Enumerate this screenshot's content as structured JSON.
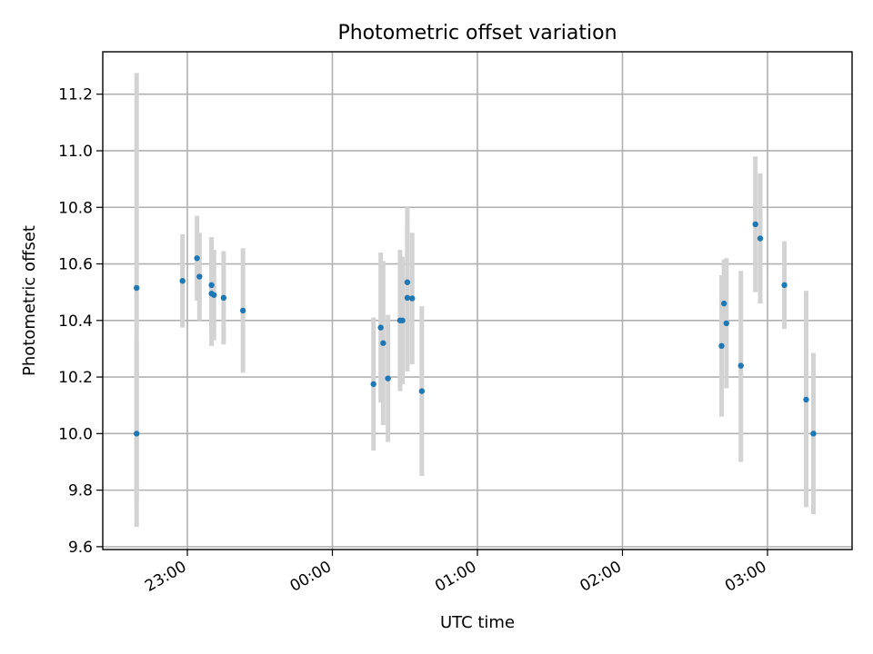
{
  "chart_data": {
    "type": "scatter",
    "title": "Photometric offset variation",
    "xlabel": "UTC time",
    "ylabel": "Photometric offset",
    "x_axis_type": "time",
    "xlim": [
      "22:25",
      "03:35"
    ],
    "ylim": [
      9.59,
      11.35
    ],
    "x_ticks": [
      "23:00",
      "00:00",
      "01:00",
      "02:00",
      "03:00"
    ],
    "y_ticks": [
      9.6,
      9.8,
      10.0,
      10.2,
      10.4,
      10.6,
      10.8,
      11.0,
      11.2
    ],
    "grid": true,
    "legend": "none",
    "marker_color": "#1f77b4",
    "errorbar_color": "#d3d3d3",
    "points": [
      {
        "x": "22:39",
        "y": 10.515,
        "ylo": 9.755,
        "yhi": 11.275
      },
      {
        "x": "22:39",
        "y": 10.0,
        "ylo": 9.67,
        "yhi": 10.33
      },
      {
        "x": "22:58",
        "y": 10.54,
        "ylo": 10.375,
        "yhi": 10.705
      },
      {
        "x": "23:04",
        "y": 10.62,
        "ylo": 10.47,
        "yhi": 10.77
      },
      {
        "x": "23:05",
        "y": 10.555,
        "ylo": 10.4,
        "yhi": 10.71
      },
      {
        "x": "23:10",
        "y": 10.525,
        "ylo": 10.355,
        "yhi": 10.695
      },
      {
        "x": "23:10",
        "y": 10.495,
        "ylo": 10.31,
        "yhi": 10.68
      },
      {
        "x": "23:11",
        "y": 10.49,
        "ylo": 10.33,
        "yhi": 10.65
      },
      {
        "x": "23:15",
        "y": 10.48,
        "ylo": 10.315,
        "yhi": 10.645
      },
      {
        "x": "23:23",
        "y": 10.435,
        "ylo": 10.215,
        "yhi": 10.655
      },
      {
        "x": "00:17",
        "y": 10.175,
        "ylo": 9.94,
        "yhi": 10.41
      },
      {
        "x": "00:20",
        "y": 10.375,
        "ylo": 10.11,
        "yhi": 10.64
      },
      {
        "x": "00:21",
        "y": 10.32,
        "ylo": 10.03,
        "yhi": 10.61
      },
      {
        "x": "00:23",
        "y": 10.195,
        "ylo": 9.97,
        "yhi": 10.42
      },
      {
        "x": "00:28",
        "y": 10.4,
        "ylo": 10.15,
        "yhi": 10.65
      },
      {
        "x": "00:29",
        "y": 10.4,
        "ylo": 10.175,
        "yhi": 10.625
      },
      {
        "x": "00:31",
        "y": 10.535,
        "ylo": 10.27,
        "yhi": 10.8
      },
      {
        "x": "00:31",
        "y": 10.48,
        "ylo": 10.22,
        "yhi": 10.74
      },
      {
        "x": "00:33",
        "y": 10.478,
        "ylo": 10.245,
        "yhi": 10.71
      },
      {
        "x": "00:37",
        "y": 10.15,
        "ylo": 9.85,
        "yhi": 10.45
      },
      {
        "x": "02:41",
        "y": 10.31,
        "ylo": 10.06,
        "yhi": 10.56
      },
      {
        "x": "02:42",
        "y": 10.46,
        "ylo": 10.305,
        "yhi": 10.615
      },
      {
        "x": "02:43",
        "y": 10.39,
        "ylo": 10.16,
        "yhi": 10.62
      },
      {
        "x": "02:49",
        "y": 10.24,
        "ylo": 9.9,
        "yhi": 10.575
      },
      {
        "x": "02:55",
        "y": 10.74,
        "ylo": 10.5,
        "yhi": 10.98
      },
      {
        "x": "02:57",
        "y": 10.69,
        "ylo": 10.46,
        "yhi": 10.92
      },
      {
        "x": "03:07",
        "y": 10.525,
        "ylo": 10.37,
        "yhi": 10.68
      },
      {
        "x": "03:16",
        "y": 10.12,
        "ylo": 9.74,
        "yhi": 10.505
      },
      {
        "x": "03:19",
        "y": 10.0,
        "ylo": 9.715,
        "yhi": 10.285
      }
    ]
  }
}
